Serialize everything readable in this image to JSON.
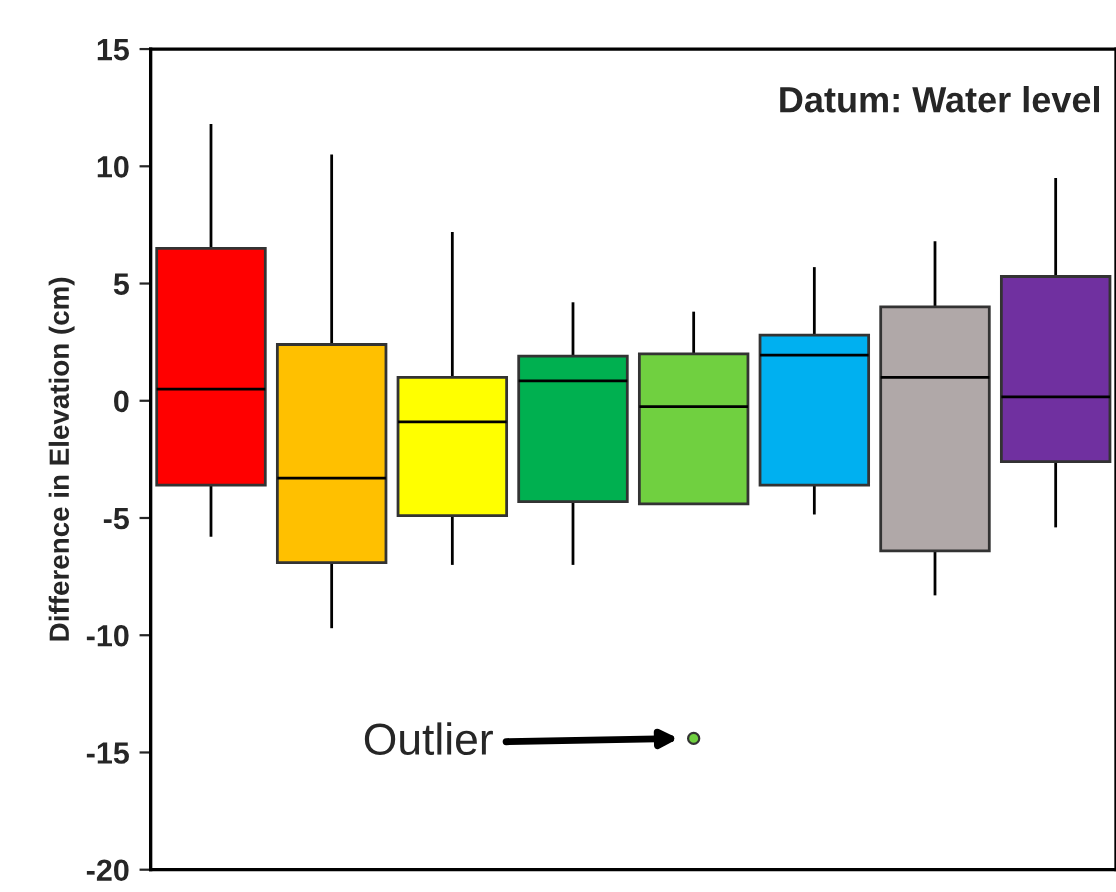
{
  "chart_data": {
    "type": "box",
    "ylabel": "Difference in Elevation (cm)",
    "categories": [
      null,
      null,
      null,
      null,
      null,
      null,
      null,
      null
    ],
    "colors": [
      "#ff0000",
      "#ffc000",
      "#ffff00",
      "#00b050",
      "#70d040",
      "#00b0f0",
      "#b0a8a8",
      "#7030a0"
    ],
    "boxes": [
      {
        "low": -5.8,
        "q1": -3.6,
        "median": 0.5,
        "q3": 6.5,
        "high": 11.8
      },
      {
        "low": -9.7,
        "q1": -6.9,
        "median": -3.3,
        "q3": 2.4,
        "high": 10.5
      },
      {
        "low": -7.0,
        "q1": -4.9,
        "median": -0.9,
        "q3": 1.0,
        "high": 7.2
      },
      {
        "low": -7.0,
        "q1": -4.3,
        "median": 0.85,
        "q3": 1.9,
        "high": 4.2
      },
      {
        "low": -4.4,
        "q1": -4.4,
        "median": -0.25,
        "q3": 2.0,
        "high": 3.8,
        "outliers": [
          -14.4
        ]
      },
      {
        "low": -4.85,
        "q1": -3.6,
        "median": 1.95,
        "q3": 2.8,
        "high": 5.7
      },
      {
        "low": -8.3,
        "q1": -6.4,
        "median": 1.0,
        "q3": 4.0,
        "high": 6.8
      },
      {
        "low": -5.4,
        "q1": -2.6,
        "median": 0.17,
        "q3": 5.3,
        "high": 9.5
      }
    ],
    "ylim": [
      -20,
      15
    ],
    "yticks": [
      -20,
      -15,
      -10,
      -5,
      0,
      5,
      10,
      15
    ],
    "tick_labels": "y",
    "grid": false,
    "legend": false,
    "annotations": [
      "Datum: Water level",
      "Outlier"
    ]
  }
}
